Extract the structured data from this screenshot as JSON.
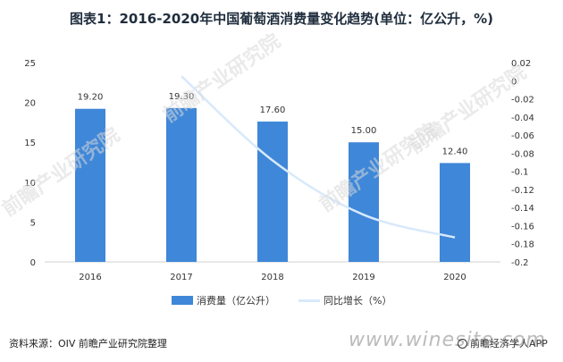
{
  "title": "图表1：2016-2020年中国葡萄酒消费量变化趋势(单位：亿公升，%)",
  "source": "资料来源：OIV 前瞻产业研究院整理",
  "watermarks": {
    "brand": "前瞻产业研究院",
    "site": "www.winesite.com",
    "app": "前瞻经济学人APP"
  },
  "colors": {
    "bar": "#3f87d8",
    "line": "#d8e9fb"
  },
  "chart_data": {
    "type": "bar+line",
    "categories": [
      "2016",
      "2017",
      "2018",
      "2019",
      "2020"
    ],
    "series": [
      {
        "name": "消费量（亿公升）",
        "type": "bar",
        "axis": "left",
        "values": [
          19.2,
          19.3,
          17.6,
          15.0,
          12.4
        ],
        "labels": [
          "19.20",
          "19.30",
          "17.60",
          "15.00",
          "12.40"
        ]
      },
      {
        "name": "同比增长（%）",
        "type": "line",
        "axis": "right",
        "values": [
          null,
          0.005,
          -0.088,
          -0.148,
          -0.173
        ]
      }
    ],
    "left_axis": {
      "min": 0,
      "max": 25,
      "ticks": [
        0,
        5,
        10,
        15,
        20,
        25
      ]
    },
    "right_axis": {
      "min": -0.2,
      "max": 0.02,
      "ticks": [
        "0.02",
        "0",
        "-0.02",
        "-0.04",
        "-0.06",
        "-0.08",
        "-0.1",
        "-0.12",
        "-0.14",
        "-0.16",
        "-0.18",
        "-0.2"
      ]
    },
    "legend": [
      "消费量（亿公升）",
      "同比增长（%）"
    ],
    "legend_position": "bottom",
    "grid": false
  }
}
